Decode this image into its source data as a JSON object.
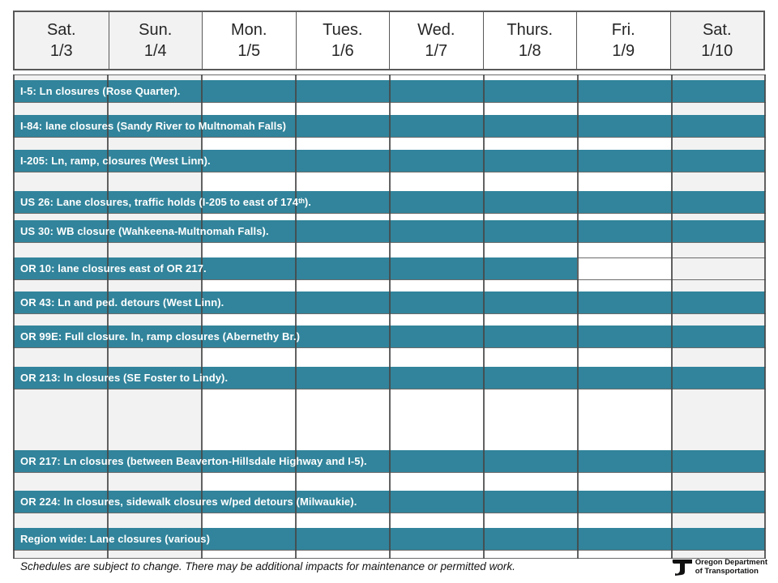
{
  "header": {
    "days": [
      {
        "name": "Sat.",
        "date": "1/3",
        "weekend": true
      },
      {
        "name": "Sun.",
        "date": "1/4",
        "weekend": true
      },
      {
        "name": "Mon.",
        "date": "1/5",
        "weekend": false
      },
      {
        "name": "Tues.",
        "date": "1/6",
        "weekend": false
      },
      {
        "name": "Wed.",
        "date": "1/7",
        "weekend": false
      },
      {
        "name": "Thurs.",
        "date": "1/8",
        "weekend": false
      },
      {
        "name": "Fri.",
        "date": "1/9",
        "weekend": false
      },
      {
        "name": "Sat.",
        "date": "1/10",
        "weekend": true
      }
    ]
  },
  "chart_data": {
    "type": "table",
    "subtype": "gantt-weekly-closure-schedule",
    "columns": [
      "Sat. 1/3",
      "Sun. 1/4",
      "Mon. 1/5",
      "Tues. 1/6",
      "Wed. 1/7",
      "Thurs. 1/8",
      "Fri. 1/9",
      "Sat. 1/10"
    ],
    "rows": [
      {
        "label": "I-5: Ln closures (Rose Quarter).",
        "day_start": 1,
        "day_end": 8
      },
      {
        "label": "I-84: lane closures (Sandy River to Multnomah Falls)",
        "day_start": 1,
        "day_end": 8
      },
      {
        "label": "I-205: Ln, ramp,  closures (West Linn).",
        "day_start": 1,
        "day_end": 8
      },
      {
        "label": "US 26: Lane closures, traffic holds (I-205 to east of 174ᵗʰ).",
        "day_start": 1,
        "day_end": 8
      },
      {
        "label": "US 30: WB closure (Wahkeena-Multnomah Falls).",
        "day_start": 1,
        "day_end": 8
      },
      {
        "label": "OR 10: lane closures east of OR 217.",
        "day_start": 1,
        "day_end": 6
      },
      {
        "label": "OR 43: Ln and ped. detours (West Linn).",
        "day_start": 1,
        "day_end": 8
      },
      {
        "label": "OR 99E: Full closure. ln, ramp closures (Abernethy Br.)",
        "day_start": 1,
        "day_end": 8
      },
      {
        "label": "OR 213: ln closures (SE Foster to Lindy).",
        "day_start": 1,
        "day_end": 8
      },
      {
        "label": "OR 217: Ln closures (between Beaverton-Hillsdale Highway and I-5).",
        "day_start": 1,
        "day_end": 8
      },
      {
        "label": "OR 224: ln closures, sidewalk closures w/ped detours (Milwaukie).",
        "day_start": 1,
        "day_end": 8
      },
      {
        "label": "Region wide: Lane closures (various)",
        "day_start": 1,
        "day_end": 8
      }
    ]
  },
  "footer": {
    "disclaimer": "Schedules are subject to change. There may be additional impacts for maintenance or permitted work.",
    "logo_line1": "Oregon Department",
    "logo_line2": "of Transportation"
  },
  "colors": {
    "bar_teal": "#31849B",
    "weekend_bg": "#F2F2F2",
    "border_dark": "#595959"
  }
}
